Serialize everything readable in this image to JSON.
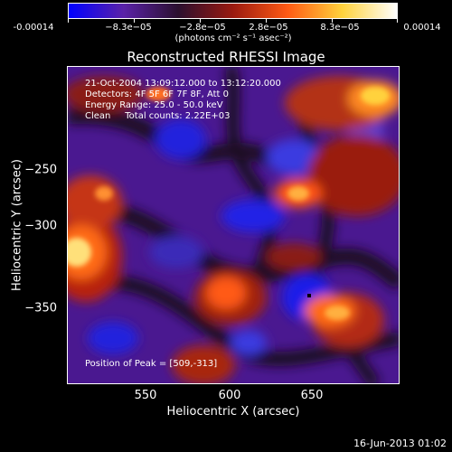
{
  "colorbar": {
    "tick_labels": [
      "-0.00014",
      "−8.3e−05",
      "−2.8e−05",
      "2.8e−05",
      "8.3e−05",
      "0.00014"
    ],
    "units": "(photons cm⁻² s⁻¹ asec⁻²)",
    "colors": [
      "#0000ff",
      "#5a22a8",
      "#2b0f2f",
      "#9a1a10",
      "#ff5a14",
      "#ffd23c",
      "#ffffff"
    ]
  },
  "image": {
    "title": "Reconstructed RHESSI Image",
    "info_lines": [
      "21-Oct-2004 13:09:12.000 to 13:12:20.000",
      "Detectors: 4F 5F 6F 7F 8F, Att 0",
      "Energy Range: 25.0 - 50.0 keV",
      "Clean     Total counts: 2.22E+03"
    ],
    "peak_label": "Position of Peak = [509,-313]"
  },
  "axes": {
    "xlabel": "Heliocentric X (arcsec)",
    "ylabel": "Heliocentric Y (arcsec)",
    "xticks": [
      "550",
      "600",
      "650"
    ],
    "yticks": [
      "−250",
      "−300",
      "−350"
    ]
  },
  "footer": {
    "timestamp": "16-Jun-2013 01:02"
  }
}
